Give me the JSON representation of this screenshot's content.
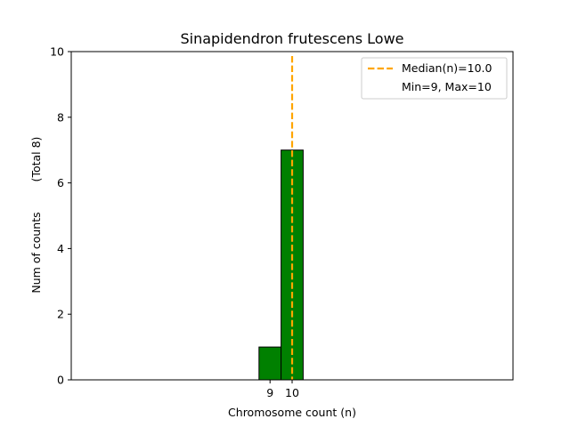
{
  "chart_data": {
    "type": "bar",
    "title": "Sinapidendron frutescens Lowe",
    "xlabel": "Chromosome count (n)",
    "ylabel": "Num of counts",
    "ylabel_total": "(Total 8)",
    "xlim": [
      0,
      20
    ],
    "ylim": [
      0,
      10
    ],
    "yticks": [
      0,
      2,
      4,
      6,
      8,
      10
    ],
    "xticks": [
      9,
      10
    ],
    "bars": [
      {
        "x": 9,
        "value": 1
      },
      {
        "x": 10,
        "value": 7
      }
    ],
    "zero_line_end": 13.5,
    "median_line": {
      "x": 10,
      "label": "Median(n)=10.0"
    },
    "minmax_label": "Min=9, Max=10",
    "bar_color": "#008000",
    "bar_edge_color": "#000000",
    "median_color": "#FFA500",
    "legend_position": "top-right",
    "grid": false
  }
}
